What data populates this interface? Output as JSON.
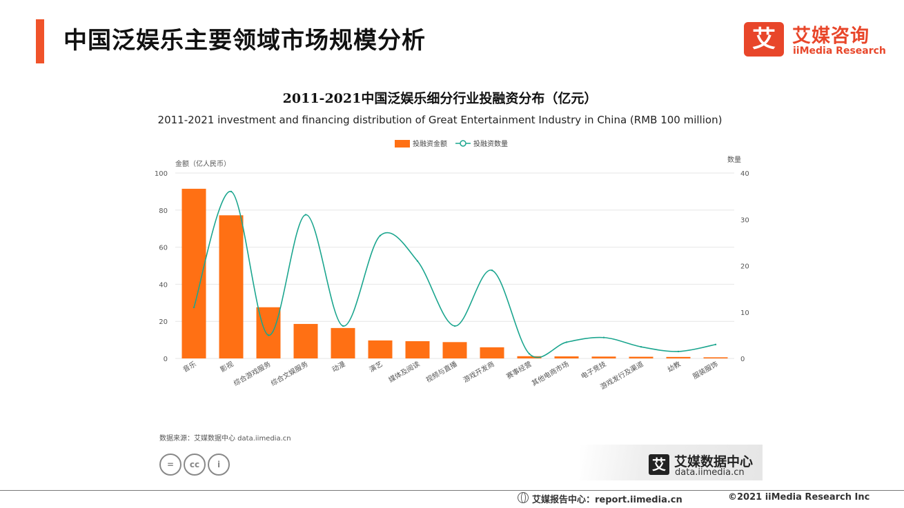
{
  "header": {
    "title": "中国泛娱乐主要领域市场规模分析",
    "brand_logo_char": "艾",
    "brand_cn": "艾媒咨询",
    "brand_en": "iiMedia Research"
  },
  "chart_data": {
    "type": "bar+line",
    "title": "2011-2021中国泛娱乐细分行业投融资分布（亿元）",
    "subtitle": "2011-2021 investment and financing distribution of Great Entertainment Industry in China (RMB 100 million)",
    "categories": [
      "音乐",
      "影视",
      "综合游戏服务",
      "综合文娱服务",
      "动漫",
      "演艺",
      "媒体及阅读",
      "视频与直播",
      "游戏开发商",
      "赛事经营",
      "其他电商市场",
      "电子竞技",
      "游戏发行及渠道",
      "幼教",
      "服装服饰"
    ],
    "series": [
      {
        "name": "投融资金额",
        "type": "bar",
        "axis": "left",
        "color": "#ff7014",
        "values": [
          91.5,
          77.2,
          27.6,
          18.6,
          16.4,
          9.7,
          9.3,
          8.8,
          6.0,
          1.2,
          1.1,
          1.0,
          0.9,
          0.8,
          0.6
        ]
      },
      {
        "name": "投融资数量",
        "type": "line",
        "axis": "right",
        "color": "#1aa58e",
        "values": [
          11,
          36,
          5,
          31,
          7,
          26.5,
          21,
          7,
          19,
          1,
          3.5,
          4.5,
          2.5,
          1.5,
          3
        ]
      }
    ],
    "ylabel": "金额（亿人民币）",
    "y2label": "数量",
    "ylim": [
      0,
      100
    ],
    "y2lim": [
      0,
      40
    ],
    "yticks": [
      "0",
      "20",
      "40",
      "60",
      "80",
      "100"
    ],
    "y2ticks": [
      "0",
      "10",
      "20",
      "30",
      "40"
    ],
    "legend": "top-center",
    "grid": true
  },
  "footer": {
    "source": "数据来源：艾媒数据中心 data.iimedia.cn",
    "cc_icons": [
      "=",
      "cc",
      "i"
    ],
    "data_center_logo_char": "艾",
    "data_center_cn": "艾媒数据中心",
    "data_center_url": "data.iimedia.cn",
    "report_text": "艾媒报告中心：report.iimedia.cn",
    "copyright": "©2021  iiMedia Research  Inc"
  }
}
